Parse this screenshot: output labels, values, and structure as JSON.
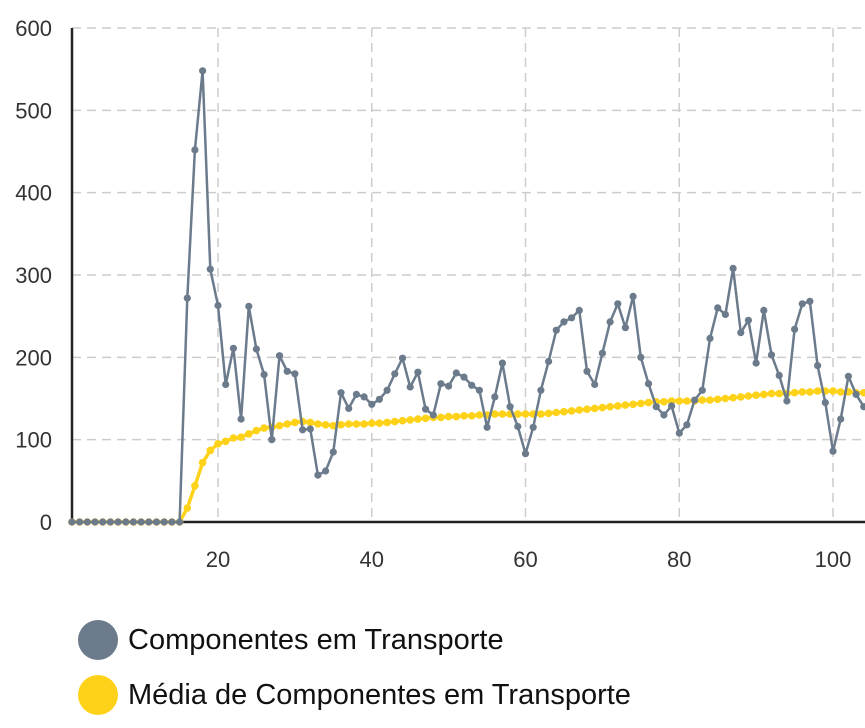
{
  "chart_data": {
    "type": "line",
    "title": "",
    "xlabel": "",
    "ylabel": "",
    "xlim": [
      1,
      104
    ],
    "ylim": [
      0,
      600
    ],
    "x_ticks": [
      20,
      40,
      60,
      80,
      100
    ],
    "y_ticks": [
      0,
      100,
      200,
      300,
      400,
      500,
      600
    ],
    "grid": true,
    "legend_position": "bottom",
    "x": [
      1,
      2,
      3,
      4,
      5,
      6,
      7,
      8,
      9,
      10,
      11,
      12,
      13,
      14,
      15,
      16,
      17,
      18,
      19,
      20,
      21,
      22,
      23,
      24,
      25,
      26,
      27,
      28,
      29,
      30,
      31,
      32,
      33,
      34,
      35,
      36,
      37,
      38,
      39,
      40,
      41,
      42,
      43,
      44,
      45,
      46,
      47,
      48,
      49,
      50,
      51,
      52,
      53,
      54,
      55,
      56,
      57,
      58,
      59,
      60,
      61,
      62,
      63,
      64,
      65,
      66,
      67,
      68,
      69,
      70,
      71,
      72,
      73,
      74,
      75,
      76,
      77,
      78,
      79,
      80,
      81,
      82,
      83,
      84,
      85,
      86,
      87,
      88,
      89,
      90,
      91,
      92,
      93,
      94,
      95,
      96,
      97,
      98,
      99,
      100,
      101,
      102,
      103,
      104
    ],
    "series": [
      {
        "name": "Componentes em Transporte",
        "color": "#6b7b8c",
        "values": [
          0,
          0,
          0,
          0,
          0,
          0,
          0,
          0,
          0,
          0,
          0,
          0,
          0,
          0,
          0,
          272,
          452,
          548,
          307,
          263,
          167,
          211,
          125,
          262,
          210,
          179,
          100,
          202,
          183,
          180,
          112,
          113,
          57,
          62,
          85,
          157,
          138,
          155,
          152,
          143,
          149,
          160,
          180,
          199,
          164,
          182,
          137,
          130,
          168,
          165,
          181,
          176,
          166,
          160,
          115,
          152,
          193,
          140,
          116,
          83,
          115,
          160,
          195,
          233,
          243,
          248,
          257,
          183,
          167,
          205,
          243,
          265,
          236,
          274,
          200,
          168,
          140,
          130,
          141,
          108,
          118,
          148,
          160,
          223,
          260,
          252,
          308,
          230,
          245,
          193,
          257,
          203,
          178,
          147,
          234,
          265,
          268,
          190,
          145,
          86,
          125,
          177,
          155,
          140
        ]
      },
      {
        "name": "Média de Componentes em Transporte",
        "color": "#ffd21a",
        "values": [
          0,
          0,
          0,
          0,
          0,
          0,
          0,
          0,
          0,
          0,
          0,
          0,
          0,
          0,
          0,
          17,
          44,
          72,
          87,
          95,
          98,
          102,
          103,
          107,
          111,
          114,
          115,
          117,
          119,
          121,
          122,
          121,
          119,
          118,
          117,
          118,
          119,
          119,
          119,
          120,
          120,
          121,
          122,
          123,
          124,
          125,
          126,
          127,
          127,
          128,
          128,
          129,
          129,
          130,
          130,
          131,
          131,
          131,
          131,
          131,
          131,
          131,
          132,
          133,
          134,
          135,
          136,
          137,
          138,
          139,
          140,
          141,
          142,
          143,
          144,
          145,
          146,
          146,
          147,
          147,
          147,
          147,
          148,
          148,
          149,
          150,
          151,
          152,
          153,
          154,
          155,
          156,
          156,
          156,
          157,
          158,
          158,
          159,
          159,
          159,
          158,
          158,
          157,
          157
        ]
      }
    ]
  },
  "legend": {
    "items": [
      {
        "label": "Componentes em Transporte",
        "color": "#6b7b8c"
      },
      {
        "label": "Média de Componentes em Transporte",
        "color": "#ffd21a"
      }
    ]
  }
}
